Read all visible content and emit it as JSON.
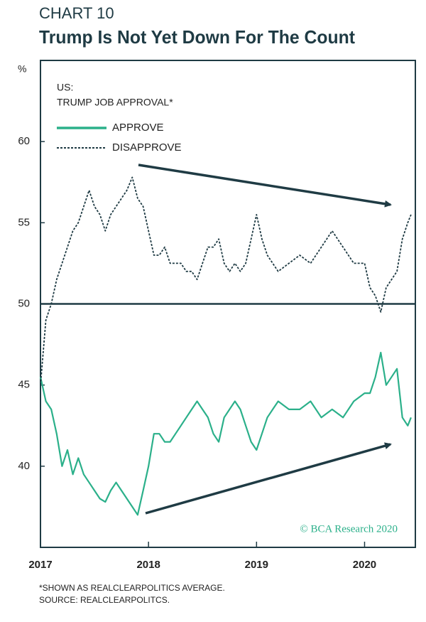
{
  "chart_data": {
    "type": "line",
    "kicker": "CHART 10",
    "title": "Trump Is Not Yet Down For The Count",
    "y_unit": "%",
    "subtitle": [
      "US:",
      "TRUMP JOB APPROVAL*"
    ],
    "watermark": "© BCA Research 2020",
    "footnotes": [
      "*SHOWN AS REALCLEARPOLITICS AVERAGE.",
      "SOURCE: REALCLEARPOLITCS."
    ],
    "legend": "top-left",
    "reference_line": 50,
    "xlim": [
      2017,
      2020.47
    ],
    "xticks": [
      2017,
      2018,
      2019,
      2020
    ],
    "ylim": [
      35,
      65
    ],
    "yticks": [
      40,
      45,
      50,
      55,
      60
    ],
    "x": [
      2017,
      2017.05,
      2017.1,
      2017.15,
      2017.2,
      2017.25,
      2017.3,
      2017.35,
      2017.4,
      2017.45,
      2017.5,
      2017.55,
      2017.6,
      2017.65,
      2017.7,
      2017.75,
      2017.8,
      2017.85,
      2017.9,
      2017.95,
      2018,
      2018.05,
      2018.1,
      2018.15,
      2018.2,
      2018.25,
      2018.3,
      2018.35,
      2018.4,
      2018.45,
      2018.5,
      2018.55,
      2018.6,
      2018.65,
      2018.7,
      2018.75,
      2018.8,
      2018.85,
      2018.9,
      2018.95,
      2019,
      2019.05,
      2019.1,
      2019.15,
      2019.2,
      2019.3,
      2019.4,
      2019.5,
      2019.6,
      2019.7,
      2019.8,
      2019.9,
      2020,
      2020.05,
      2020.1,
      2020.15,
      2020.2,
      2020.25,
      2020.3,
      2020.35,
      2020.4,
      2020.43
    ],
    "series": [
      {
        "name": "APPROVE",
        "color": "#2bb08a",
        "dash": false,
        "values": [
          45.5,
          44,
          43.5,
          42,
          40,
          41,
          39.5,
          40.5,
          39.5,
          39,
          38.5,
          38,
          37.8,
          38.5,
          39,
          38.5,
          38,
          37.5,
          37,
          38.5,
          40,
          42,
          42,
          41.5,
          41.5,
          42,
          42.5,
          43,
          43.5,
          44,
          43.5,
          43,
          42,
          41.5,
          43,
          43.5,
          44,
          43.5,
          42.5,
          41.5,
          41,
          42,
          43,
          43.5,
          44,
          43.5,
          43.5,
          44,
          43,
          43.5,
          43,
          44,
          44.5,
          44.5,
          45.5,
          47,
          45,
          45.5,
          46,
          43,
          42.5,
          43
        ]
      },
      {
        "name": "DISAPPROVE",
        "color": "#1f3b44",
        "dash": true,
        "values": [
          45,
          49,
          50,
          51.5,
          52.5,
          53.5,
          54.5,
          55,
          56,
          57,
          56,
          55.5,
          54.5,
          55.5,
          56,
          56.5,
          57,
          57.8,
          56.5,
          56,
          54.5,
          53,
          53,
          53.5,
          52.5,
          52.5,
          52.5,
          52,
          52,
          51.5,
          52.5,
          53.5,
          53.5,
          54,
          52.5,
          52,
          52.5,
          52,
          52.5,
          54,
          55.5,
          54,
          53,
          52.5,
          52,
          52.5,
          53,
          52.5,
          53.5,
          54.5,
          53.5,
          52.5,
          52.5,
          51,
          50.5,
          49.5,
          51,
          51.5,
          52,
          54,
          55,
          55.5
        ]
      }
    ]
  }
}
